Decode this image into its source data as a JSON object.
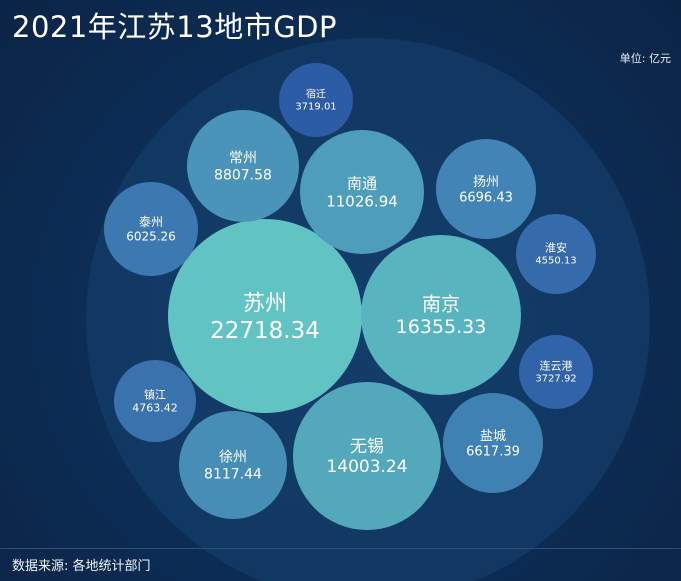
{
  "header": {
    "title": "2021年江苏13地市GDP",
    "unit": "单位: 亿元"
  },
  "footer": {
    "source": "数据来源: 各地统计部门"
  },
  "chart_data": {
    "type": "bubble",
    "title": "2021年江苏13地市GDP",
    "unit": "单位: 亿元",
    "items": [
      {
        "name": "苏州",
        "value": "22718.34"
      },
      {
        "name": "南京",
        "value": "16355.33"
      },
      {
        "name": "无锡",
        "value": "14003.24"
      },
      {
        "name": "南通",
        "value": "11026.94"
      },
      {
        "name": "常州",
        "value": "8807.58"
      },
      {
        "name": "徐州",
        "value": "8117.44"
      },
      {
        "name": "扬州",
        "value": "6696.43"
      },
      {
        "name": "盐城",
        "value": "6617.39"
      },
      {
        "name": "泰州",
        "value": "6025.26"
      },
      {
        "name": "镇江",
        "value": "4763.42"
      },
      {
        "name": "淮安",
        "value": "4550.13"
      },
      {
        "name": "连云港",
        "value": "3727.92"
      },
      {
        "name": "宿迁",
        "value": "3719.01"
      }
    ]
  }
}
